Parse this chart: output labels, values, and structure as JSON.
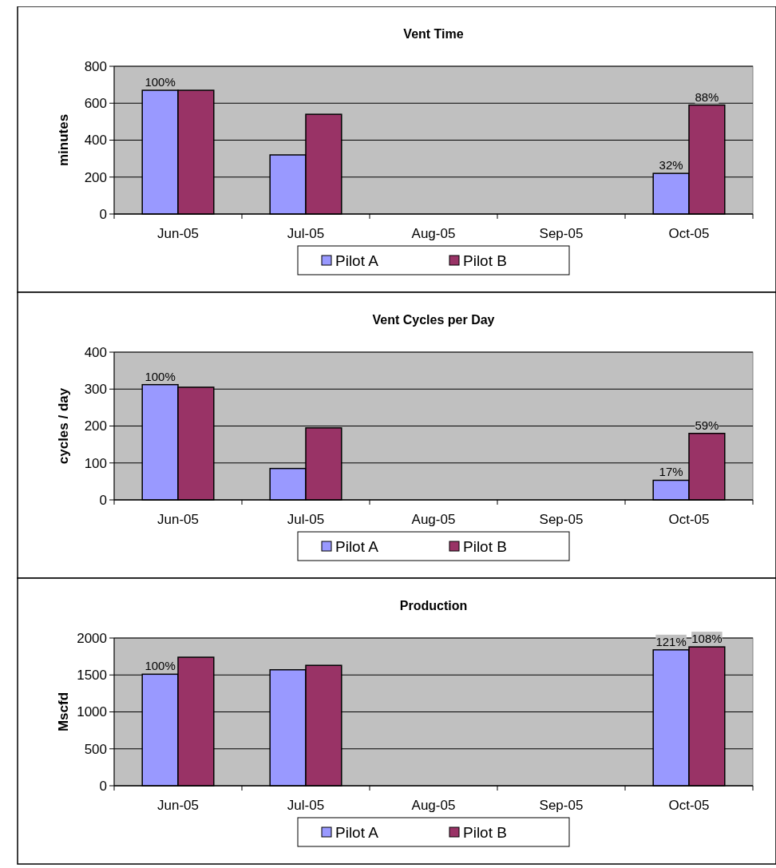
{
  "chart_data": [
    {
      "type": "bar",
      "title": "Vent Time",
      "ylabel": "minutes",
      "categories": [
        "Jun-05",
        "Jul-05",
        "Aug-05",
        "Sep-05",
        "Oct-05"
      ],
      "ylim": [
        0,
        800
      ],
      "yticks": [
        0,
        200,
        400,
        600,
        800
      ],
      "grid": "y",
      "legend": "bottom",
      "series": [
        {
          "name": "Pilot A",
          "color": "#9999ff",
          "values": [
            670,
            320,
            null,
            null,
            220
          ]
        },
        {
          "name": "Pilot B",
          "color": "#993366",
          "values": [
            670,
            540,
            null,
            null,
            590
          ]
        }
      ],
      "annotations": [
        {
          "text": "100%",
          "x": "Jun-05",
          "y": 670
        },
        {
          "text": "32%",
          "x": "Oct-05",
          "y": 220
        },
        {
          "text": "88%",
          "x": "Oct-05",
          "y": 590
        }
      ]
    },
    {
      "type": "bar",
      "title": "Vent Cycles per Day",
      "ylabel": "cycles / day",
      "categories": [
        "Jun-05",
        "Jul-05",
        "Aug-05",
        "Sep-05",
        "Oct-05"
      ],
      "ylim": [
        0,
        400
      ],
      "yticks": [
        0,
        100,
        200,
        300,
        400
      ],
      "grid": "y",
      "legend": "bottom",
      "series": [
        {
          "name": "Pilot A",
          "color": "#9999ff",
          "values": [
            312,
            85,
            null,
            null,
            53
          ]
        },
        {
          "name": "Pilot B",
          "color": "#993366",
          "values": [
            305,
            195,
            null,
            null,
            180
          ]
        }
      ],
      "annotations": [
        {
          "text": "100%",
          "x": "Jun-05",
          "y": 312
        },
        {
          "text": "17%",
          "x": "Oct-05",
          "y": 53
        },
        {
          "text": "59%",
          "x": "Oct-05",
          "y": 180
        }
      ]
    },
    {
      "type": "bar",
      "title": "Production",
      "ylabel": "Mscfd",
      "categories": [
        "Jun-05",
        "Jul-05",
        "Aug-05",
        "Sep-05",
        "Oct-05"
      ],
      "ylim": [
        0,
        2000
      ],
      "yticks": [
        0,
        500,
        1000,
        1500,
        2000
      ],
      "grid": "y",
      "legend": "bottom",
      "series": [
        {
          "name": "Pilot A",
          "color": "#9999ff",
          "values": [
            1510,
            1570,
            null,
            null,
            1840
          ]
        },
        {
          "name": "Pilot B",
          "color": "#993366",
          "values": [
            1740,
            1630,
            null,
            null,
            1880
          ]
        }
      ],
      "annotations": [
        {
          "text": "100%",
          "x": "Jun-05",
          "y": 1510
        },
        {
          "text": "121%",
          "x": "Oct-05",
          "y": 1840
        },
        {
          "text": "108%",
          "x": "Oct-05",
          "y": 1880
        }
      ]
    }
  ]
}
